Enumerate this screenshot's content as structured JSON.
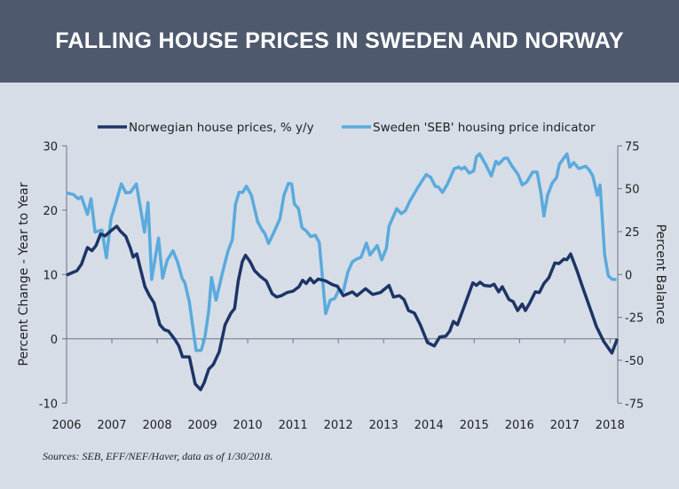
{
  "header": {
    "title": "FALLING HOUSE PRICES IN SWEDEN AND NORWAY"
  },
  "footnote": "Sources: SEB, EFF/NEF/Haver, data as of 1/30/2018.",
  "chart_data": {
    "type": "line",
    "title": "FALLING HOUSE PRICES IN SWEDEN AND NORWAY",
    "xlabel": "",
    "ylabel": "Percent Change - Year to Year",
    "y2label": "Percent Balance",
    "xlim": [
      2006,
      2018.17
    ],
    "ylim": [
      -10,
      30
    ],
    "y2lim": [
      -75,
      75
    ],
    "x_ticks": [
      "2006",
      "2007",
      "2008",
      "2009",
      "2010",
      "2011",
      "2012",
      "2013",
      "2014",
      "2015",
      "2016",
      "2017",
      "2018"
    ],
    "y_ticks": [
      "30",
      "20",
      "10",
      "0",
      "-10"
    ],
    "y2_ticks": [
      "75",
      "50",
      "25",
      "0",
      "-25",
      "-50",
      "-75"
    ],
    "grid": false,
    "legend": "top",
    "colors": {
      "norway": "#1d3466",
      "sweden": "#5aaadd",
      "header": "#4e596d",
      "background": "#d6dde6"
    },
    "series": [
      {
        "name": "Norwegian house prices, % y/y",
        "axis": "left",
        "x": [
          2006.0,
          2006.23,
          2006.33,
          2006.46,
          2006.56,
          2006.65,
          2006.75,
          2006.85,
          2006.98,
          2007.11,
          2007.18,
          2007.31,
          2007.41,
          2007.47,
          2007.55,
          2007.63,
          2007.73,
          2007.83,
          2007.93,
          2008.06,
          2008.16,
          2008.25,
          2008.39,
          2008.48,
          2008.56,
          2008.71,
          2008.84,
          2008.96,
          2009.04,
          2009.14,
          2009.24,
          2009.37,
          2009.5,
          2009.63,
          2009.71,
          2009.79,
          2009.88,
          2009.95,
          2010.05,
          2010.15,
          2010.28,
          2010.41,
          2010.54,
          2010.64,
          2010.74,
          2010.87,
          2011.0,
          2011.13,
          2011.21,
          2011.29,
          2011.38,
          2011.46,
          2011.56,
          2011.72,
          2011.88,
          2011.98,
          2012.11,
          2012.31,
          2012.41,
          2012.6,
          2012.76,
          2012.93,
          2013.12,
          2013.22,
          2013.35,
          2013.45,
          2013.55,
          2013.68,
          2013.81,
          2013.97,
          2014.12,
          2014.24,
          2014.37,
          2014.46,
          2014.54,
          2014.63,
          2014.8,
          2014.97,
          2015.05,
          2015.13,
          2015.22,
          2015.35,
          2015.44,
          2015.54,
          2015.62,
          2015.77,
          2015.86,
          2015.96,
          2016.06,
          2016.13,
          2016.23,
          2016.35,
          2016.44,
          2016.54,
          2016.65,
          2016.78,
          2016.87,
          2016.98,
          2017.05,
          2017.13,
          2017.27,
          2017.38,
          2017.54,
          2017.7,
          2017.86,
          2018.04,
          2018.16
        ],
        "y": [
          9.9,
          10.6,
          11.6,
          14.2,
          13.7,
          14.5,
          16.3,
          16.0,
          16.8,
          17.5,
          16.8,
          15.9,
          14.1,
          12.7,
          13.2,
          10.9,
          8.1,
          6.7,
          5.6,
          2.2,
          1.4,
          1.2,
          -0.1,
          -1.1,
          -2.8,
          -2.8,
          -7.0,
          -7.9,
          -6.8,
          -4.7,
          -4.0,
          -2.0,
          2.2,
          4.0,
          4.7,
          9.0,
          12.0,
          13.0,
          12.0,
          10.6,
          9.7,
          9.0,
          7.0,
          6.5,
          6.7,
          7.2,
          7.4,
          8.1,
          9.1,
          8.6,
          9.4,
          8.7,
          9.3,
          9.0,
          8.4,
          8.2,
          6.7,
          7.3,
          6.7,
          7.8,
          6.9,
          7.2,
          8.3,
          6.5,
          6.7,
          6.1,
          4.4,
          4.0,
          2.2,
          -0.6,
          -1.1,
          0.3,
          0.4,
          1.2,
          2.7,
          2.2,
          5.4,
          8.7,
          8.3,
          8.8,
          8.3,
          8.2,
          8.5,
          7.3,
          8.1,
          6.1,
          5.8,
          4.4,
          5.4,
          4.4,
          5.6,
          7.3,
          7.2,
          8.6,
          9.5,
          11.8,
          11.7,
          12.4,
          12.3,
          13.2,
          10.6,
          8.3,
          5.1,
          1.9,
          -0.4,
          -2.2,
          0.0
        ]
      },
      {
        "name": "Sweden 'SEB' housing price indicator",
        "axis": "right",
        "x": [
          2006.0,
          2006.15,
          2006.26,
          2006.33,
          2006.46,
          2006.54,
          2006.63,
          2006.78,
          2006.88,
          2006.98,
          2007.08,
          2007.21,
          2007.31,
          2007.41,
          2007.54,
          2007.72,
          2007.8,
          2007.88,
          2008.03,
          2008.12,
          2008.22,
          2008.35,
          2008.45,
          2008.55,
          2008.61,
          2008.71,
          2008.86,
          2008.97,
          2009.05,
          2009.14,
          2009.2,
          2009.3,
          2009.43,
          2009.56,
          2009.66,
          2009.73,
          2009.81,
          2009.89,
          2009.97,
          2010.08,
          2010.22,
          2010.31,
          2010.38,
          2010.46,
          2010.58,
          2010.71,
          2010.8,
          2010.9,
          2010.97,
          2011.03,
          2011.12,
          2011.2,
          2011.29,
          2011.39,
          2011.49,
          2011.58,
          2011.72,
          2011.82,
          2011.92,
          2012.01,
          2012.11,
          2012.21,
          2012.31,
          2012.41,
          2012.5,
          2012.62,
          2012.7,
          2012.86,
          2012.96,
          2013.06,
          2013.12,
          2013.29,
          2013.39,
          2013.48,
          2013.58,
          2013.75,
          2013.94,
          2014.04,
          2014.14,
          2014.21,
          2014.3,
          2014.4,
          2014.46,
          2014.56,
          2014.66,
          2014.72,
          2014.79,
          2014.89,
          2014.99,
          2015.05,
          2015.12,
          2015.25,
          2015.38,
          2015.48,
          2015.54,
          2015.67,
          2015.73,
          2015.83,
          2015.97,
          2016.06,
          2016.16,
          2016.29,
          2016.39,
          2016.48,
          2016.54,
          2016.62,
          2016.72,
          2016.82,
          2016.88,
          2017.05,
          2017.11,
          2017.2,
          2017.31,
          2017.46,
          2017.54,
          2017.62,
          2017.72,
          2017.78,
          2017.88,
          2017.96,
          2018.05,
          2018.14
        ],
        "y": [
          47.6,
          46.6,
          44.1,
          45.3,
          35.0,
          44.1,
          24.7,
          25.9,
          9.7,
          32.4,
          41.0,
          52.8,
          47.6,
          47.9,
          52.8,
          24.7,
          41.9,
          -2.9,
          21.2,
          -2.1,
          8.3,
          13.8,
          7.4,
          -2.1,
          -4.7,
          -15.9,
          -44.3,
          -44.3,
          -37.4,
          -21.0,
          -1.7,
          -15.0,
          -0.3,
          13.4,
          20.3,
          41.0,
          47.9,
          47.9,
          51.4,
          46.2,
          30.7,
          26.4,
          23.8,
          18.1,
          24.7,
          32.4,
          46.2,
          53.1,
          52.8,
          41.0,
          38.4,
          27.2,
          25.5,
          22.1,
          22.9,
          18.6,
          -22.8,
          -15.0,
          -14.0,
          -9.0,
          -9.8,
          1.4,
          7.4,
          9.1,
          10.0,
          18.3,
          11.4,
          16.9,
          8.6,
          15.2,
          28.1,
          38.4,
          35.5,
          37.2,
          42.8,
          50.5,
          58.3,
          56.6,
          51.4,
          51.0,
          47.9,
          52.2,
          55.7,
          61.7,
          62.6,
          61.4,
          62.6,
          59.1,
          60.3,
          68.6,
          70.3,
          64.3,
          57.4,
          66.0,
          64.3,
          67.8,
          67.8,
          63.4,
          58.3,
          52.2,
          53.9,
          59.7,
          59.7,
          46.2,
          34.1,
          46.2,
          53.1,
          56.6,
          64.3,
          70.3,
          62.6,
          65.2,
          61.7,
          63.1,
          60.9,
          57.4,
          46.2,
          52.2,
          11.7,
          -0.7,
          -2.9,
          -2.9
        ]
      }
    ]
  }
}
